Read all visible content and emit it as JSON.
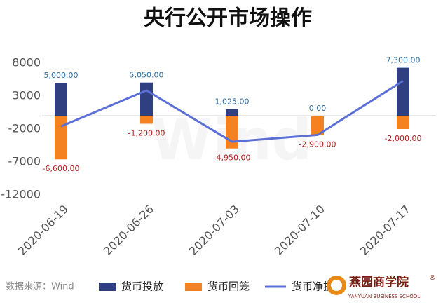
{
  "chart_data": {
    "type": "bar",
    "title": "央行公开市场操作",
    "categories": [
      "2020-06-19",
      "2020-06-26",
      "2020-07-03",
      "2020-07-10",
      "2020-07-17"
    ],
    "series": [
      {
        "name": "货币投放",
        "color": "#2f3f7f",
        "type": "bar",
        "values": [
          5000,
          5050,
          1025,
          0,
          7300
        ],
        "value_labels": [
          "5,000.00",
          "5,050.00",
          "1,025.00",
          "0.00",
          "7,300.00"
        ]
      },
      {
        "name": "货币回笼",
        "color": "#f58220",
        "type": "bar",
        "values": [
          -6600,
          -1200,
          -4950,
          -2900,
          -2000
        ],
        "value_labels": [
          "-6,600.00",
          "-1,200.00",
          "-4,950.00",
          "-2,900.00",
          "-2,000.00"
        ]
      },
      {
        "name": "货币净投放",
        "color": "#5b6fd6",
        "type": "line",
        "values": [
          -1600,
          3850,
          -3925,
          -2900,
          5300
        ]
      }
    ],
    "ylim": [
      -12000,
      8000
    ],
    "yticks": [
      8000,
      3000,
      -2000,
      -7000,
      -12000
    ],
    "source": "数据来源：Wind",
    "watermark": "Wind"
  },
  "logo": {
    "name": "燕园商学院",
    "subtitle": "YANYUAN BUSINESS SCHOOL",
    "mark": "®"
  }
}
